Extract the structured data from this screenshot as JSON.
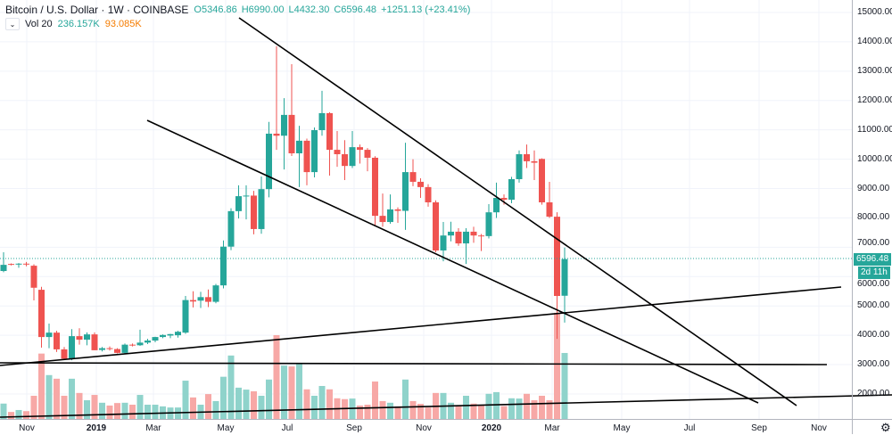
{
  "header": {
    "title": "Bitcoin / U.S. Dollar",
    "interval": "1W",
    "exchange": "COINBASE",
    "open": "O5346.86",
    "high": "H6990.00",
    "low": "L4432.30",
    "close": "C6596.48",
    "change": "+1251.13 (+23.41%)"
  },
  "volume_legend": {
    "collapse_icon": "chevron-down-icon",
    "label": "Vol 20",
    "value": "236.157K",
    "ma_value": "93.085K"
  },
  "price_axis": {
    "labels": [
      "15000.00",
      "14000.00",
      "13000.00",
      "12000.00",
      "11000.00",
      "10000.00",
      "9000.00",
      "8000.00",
      "7000.00",
      "6000.00",
      "5000.00",
      "4000.00",
      "3000.00",
      "2000.00"
    ],
    "current_price": "6596.48",
    "countdown": "2d 11h"
  },
  "time_axis": {
    "labels": [
      "Nov",
      "2019",
      "Mar",
      "May",
      "Jul",
      "Sep",
      "Nov",
      "2020",
      "Mar",
      "May",
      "Jul",
      "Sep",
      "Nov"
    ]
  },
  "colors": {
    "up": "#26a69a",
    "down": "#ef5350",
    "up_volume": "#8fd3cb",
    "down_volume": "#f7a8a6",
    "trendline": "#000000"
  },
  "settings_icon": "gear-icon",
  "chart_data": {
    "type": "candlestick",
    "interval": "1W",
    "ylim": [
      1500,
      15300
    ],
    "grid": true,
    "columns": [
      "open",
      "high",
      "low",
      "close",
      "volume_K"
    ],
    "candles": [
      [
        6190,
        6830,
        6150,
        6400,
        55
      ],
      [
        6430,
        6450,
        6380,
        6420,
        25
      ],
      [
        6420,
        6460,
        6300,
        6440,
        32
      ],
      [
        6440,
        6500,
        6350,
        6410,
        28
      ],
      [
        6370,
        6420,
        5190,
        5620,
        83
      ],
      [
        5550,
        5650,
        3580,
        3940,
        234
      ],
      [
        3940,
        4400,
        3560,
        4090,
        157
      ],
      [
        4090,
        4150,
        3430,
        3520,
        144
      ],
      [
        3520,
        3600,
        3180,
        3200,
        83
      ],
      [
        3200,
        4210,
        3150,
        3970,
        144
      ],
      [
        3970,
        4240,
        3680,
        3850,
        93
      ],
      [
        3850,
        4100,
        3660,
        4030,
        67
      ],
      [
        4030,
        4100,
        3490,
        3490,
        86
      ],
      [
        3500,
        3600,
        3450,
        3560,
        58
      ],
      [
        3560,
        3620,
        3480,
        3530,
        48
      ],
      [
        3530,
        3560,
        3380,
        3400,
        57
      ],
      [
        3400,
        3720,
        3380,
        3680,
        58
      ],
      [
        3680,
        3720,
        3620,
        3650,
        51
      ],
      [
        3660,
        4190,
        3640,
        3750,
        86
      ],
      [
        3750,
        3880,
        3700,
        3820,
        51
      ],
      [
        3820,
        3950,
        3760,
        3940,
        51
      ],
      [
        3940,
        4030,
        3900,
        4010,
        45
      ],
      [
        3990,
        4050,
        3900,
        4040,
        41
      ],
      [
        4000,
        4150,
        3920,
        4120,
        41
      ],
      [
        4090,
        5340,
        4050,
        5200,
        137
      ],
      [
        5200,
        5500,
        4950,
        5150,
        77
      ],
      [
        5180,
        5480,
        4930,
        5300,
        51
      ],
      [
        5300,
        5560,
        4960,
        5140,
        89
      ],
      [
        5140,
        5750,
        5090,
        5700,
        64
      ],
      [
        5700,
        7230,
        5600,
        7020,
        151
      ],
      [
        7020,
        8330,
        6900,
        8230,
        227
      ],
      [
        8230,
        9110,
        7980,
        8740,
        112
      ],
      [
        8740,
        9110,
        7950,
        8760,
        105
      ],
      [
        8760,
        8920,
        7440,
        7620,
        99
      ],
      [
        7620,
        9410,
        7460,
        8980,
        83
      ],
      [
        8980,
        11270,
        8700,
        10870,
        141
      ],
      [
        10870,
        13850,
        10320,
        10800,
        300
      ],
      [
        10800,
        12080,
        9650,
        11510,
        191
      ],
      [
        11510,
        13240,
        10110,
        10200,
        188
      ],
      [
        10200,
        11140,
        9050,
        10630,
        198
      ],
      [
        10630,
        10700,
        9110,
        9560,
        106
      ],
      [
        9560,
        11080,
        9380,
        10990,
        83
      ],
      [
        10990,
        12330,
        10800,
        11570,
        118
      ],
      [
        11570,
        11600,
        9440,
        10320,
        106
      ],
      [
        10320,
        10960,
        9740,
        10170,
        74
      ],
      [
        10170,
        10650,
        9290,
        9770,
        71
      ],
      [
        9770,
        10960,
        9700,
        10410,
        73
      ],
      [
        10410,
        10500,
        9850,
        10320,
        48
      ],
      [
        10320,
        10380,
        9590,
        10050,
        51
      ],
      [
        10050,
        10100,
        7740,
        8070,
        134
      ],
      [
        8070,
        8830,
        7700,
        7860,
        64
      ],
      [
        7860,
        8800,
        7800,
        8290,
        58
      ],
      [
        8290,
        8360,
        7830,
        8240,
        45
      ],
      [
        8240,
        10560,
        7590,
        9560,
        141
      ],
      [
        9560,
        10000,
        9080,
        9230,
        64
      ],
      [
        9230,
        9350,
        8680,
        9050,
        54
      ],
      [
        9050,
        9150,
        8380,
        8530,
        41
      ],
      [
        8530,
        8600,
        6830,
        6890,
        93
      ],
      [
        6890,
        7860,
        6520,
        7400,
        93
      ],
      [
        7400,
        7870,
        7200,
        7530,
        58
      ],
      [
        7530,
        7650,
        7050,
        7130,
        48
      ],
      [
        7130,
        7650,
        6430,
        7530,
        83
      ],
      [
        7530,
        7700,
        7150,
        7400,
        55
      ],
      [
        7400,
        7450,
        6870,
        7380,
        48
      ],
      [
        7380,
        8470,
        7300,
        8190,
        90
      ],
      [
        8190,
        9200,
        8000,
        8680,
        96
      ],
      [
        8680,
        8800,
        8450,
        8620,
        46
      ],
      [
        8620,
        9400,
        8500,
        9320,
        74
      ],
      [
        9320,
        10300,
        9200,
        10170,
        73
      ],
      [
        10170,
        10500,
        9700,
        9930,
        90
      ],
      [
        9930,
        10300,
        9290,
        9880,
        67
      ],
      [
        10010,
        10030,
        8450,
        8530,
        83
      ],
      [
        8530,
        9230,
        8000,
        8040,
        67
      ],
      [
        8040,
        8190,
        3880,
        5340,
        380
      ],
      [
        5346.86,
        6990,
        4432.3,
        6596.48,
        236.157
      ]
    ]
  }
}
